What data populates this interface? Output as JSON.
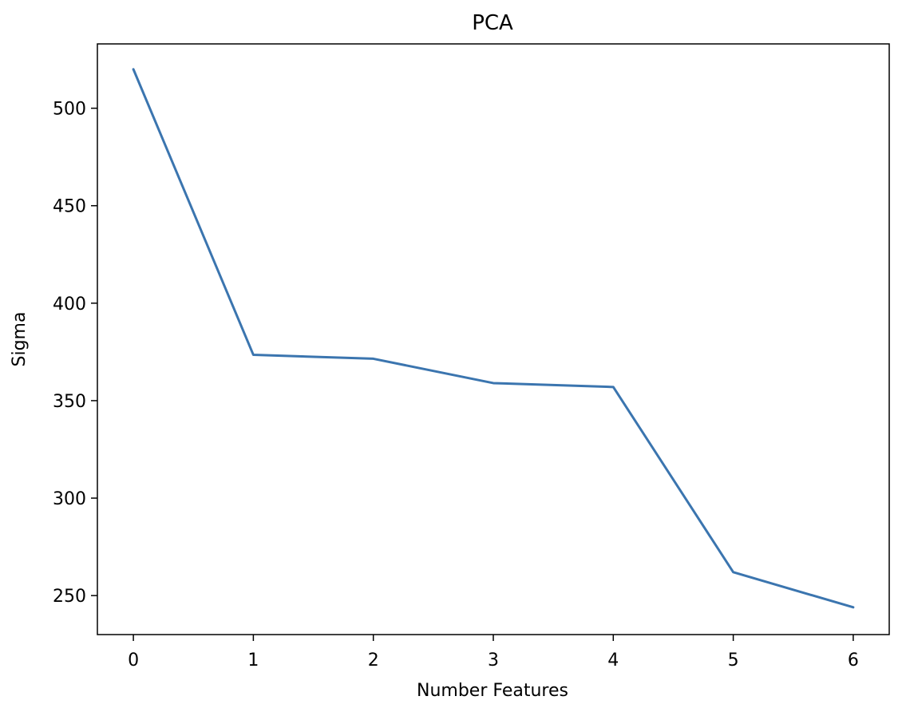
{
  "chart_data": {
    "type": "line",
    "title": "PCA",
    "xlabel": "Number Features",
    "ylabel": "Sigma",
    "x": [
      0,
      1,
      2,
      3,
      4,
      5,
      6
    ],
    "series": [
      {
        "values": [
          520,
          373.5,
          371.5,
          359,
          357,
          262,
          244
        ]
      }
    ],
    "xlim": [
      -0.3,
      6.3
    ],
    "ylim": [
      230,
      533
    ],
    "xticks": [
      "0",
      "1",
      "2",
      "3",
      "4",
      "5",
      "6"
    ],
    "yticks": [
      "250",
      "300",
      "350",
      "400",
      "450",
      "500"
    ],
    "line_color": "#3b75af",
    "grid": false,
    "legend": "none"
  }
}
